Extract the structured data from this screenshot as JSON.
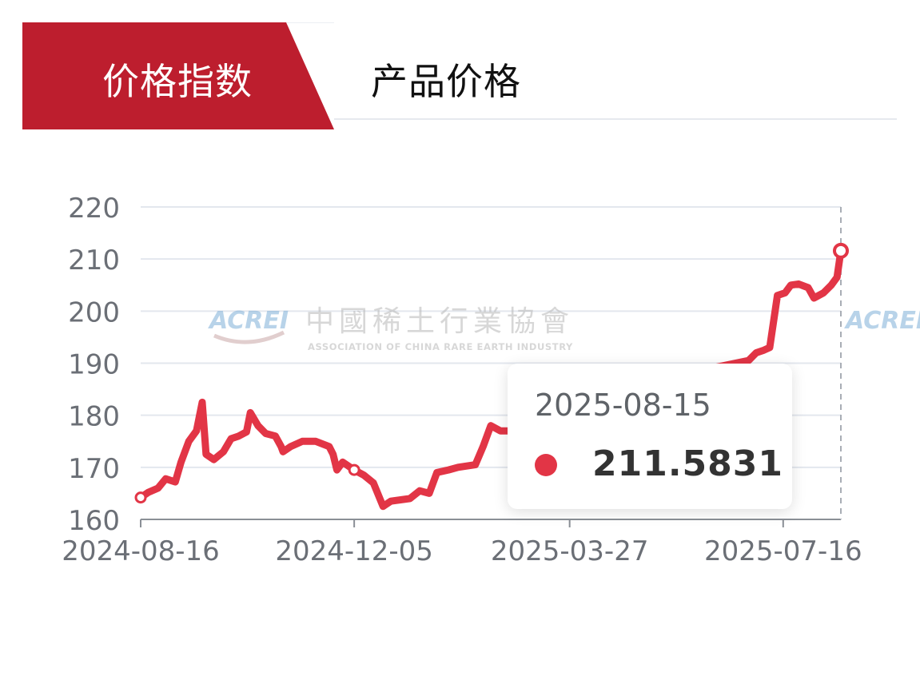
{
  "tabs": {
    "active_label": "价格指数",
    "inactive_label": "产品价格"
  },
  "watermark": {
    "logo_text": "ACREI",
    "name_cn": "中國稀土行業協會",
    "name_en": "ASSOCIATION OF CHINA RARE EARTH INDUSTRY"
  },
  "tooltip": {
    "date": "2025-08-15",
    "value": "211.5831"
  },
  "colors": {
    "line": "#e23546",
    "tab_active_bg": "#bd1e2e",
    "grid": "#e3e7ee",
    "axis_text": "#6b6f76"
  },
  "chart_data": {
    "type": "line",
    "x_tick_labels": [
      "2024-08-16",
      "2024-12-05",
      "2025-03-27",
      "2025-07-16"
    ],
    "y_ticks": [
      160,
      170,
      180,
      190,
      200,
      210,
      220
    ],
    "ylim": [
      160,
      220
    ],
    "xlim": [
      "2024-08-16",
      "2025-08-15"
    ],
    "grid": true,
    "series": [
      {
        "points": [
          [
            "2024-08-16",
            164.2
          ],
          [
            "2024-08-20",
            165.2
          ],
          [
            "2024-08-25",
            166.0
          ],
          [
            "2024-08-29",
            167.8
          ],
          [
            "2024-09-03",
            167.2
          ],
          [
            "2024-09-06",
            171.0
          ],
          [
            "2024-09-10",
            175.0
          ],
          [
            "2024-09-14",
            177.0
          ],
          [
            "2024-09-17",
            182.5
          ],
          [
            "2024-09-19",
            172.5
          ],
          [
            "2024-09-23",
            171.5
          ],
          [
            "2024-09-28",
            173.0
          ],
          [
            "2024-10-02",
            175.5
          ],
          [
            "2024-10-06",
            176.0
          ],
          [
            "2024-10-10",
            176.8
          ],
          [
            "2024-10-12",
            180.5
          ],
          [
            "2024-10-16",
            178.0
          ],
          [
            "2024-10-20",
            176.5
          ],
          [
            "2024-10-25",
            176.0
          ],
          [
            "2024-10-28",
            174.0
          ],
          [
            "2024-10-29",
            173.0
          ],
          [
            "2024-11-02",
            174.0
          ],
          [
            "2024-11-08",
            175.0
          ],
          [
            "2024-11-15",
            175.0
          ],
          [
            "2024-11-22",
            174.0
          ],
          [
            "2024-11-24",
            172.5
          ],
          [
            "2024-11-26",
            169.5
          ],
          [
            "2024-11-29",
            171.0
          ],
          [
            "2024-12-05",
            169.5
          ],
          [
            "2024-12-10",
            168.5
          ],
          [
            "2024-12-15",
            167.0
          ],
          [
            "2024-12-20",
            162.5
          ],
          [
            "2024-12-24",
            163.5
          ],
          [
            "2025-01-03",
            164.0
          ],
          [
            "2025-01-08",
            165.5
          ],
          [
            "2025-01-13",
            165.0
          ],
          [
            "2025-01-17",
            169.0
          ],
          [
            "2025-01-23",
            169.5
          ],
          [
            "2025-01-28",
            170.0
          ],
          [
            "2025-02-06",
            170.5
          ],
          [
            "2025-02-10",
            174.0
          ],
          [
            "2025-02-14",
            178.0
          ],
          [
            "2025-02-19",
            177.0
          ],
          [
            "2025-02-25",
            177.0
          ],
          [
            "2025-02-27",
            180.0
          ],
          [
            "2025-03-02",
            182.5
          ],
          [
            "2025-03-08",
            182.0
          ],
          [
            "2025-06-28",
            190.5
          ],
          [
            "2025-07-02",
            192.0
          ],
          [
            "2025-07-06",
            192.5
          ],
          [
            "2025-07-09",
            193.0
          ],
          [
            "2025-07-13",
            203.0
          ],
          [
            "2025-07-17",
            203.5
          ],
          [
            "2025-07-20",
            205.0
          ],
          [
            "2025-07-24",
            205.2
          ],
          [
            "2025-07-29",
            204.5
          ],
          [
            "2025-08-01",
            202.5
          ],
          [
            "2025-08-06",
            203.5
          ],
          [
            "2025-08-10",
            205.0
          ],
          [
            "2025-08-13",
            206.5
          ],
          [
            "2025-08-15",
            211.5831
          ]
        ]
      }
    ],
    "marked_points": [
      "2024-08-16",
      "2024-12-05",
      "2025-08-15"
    ]
  }
}
